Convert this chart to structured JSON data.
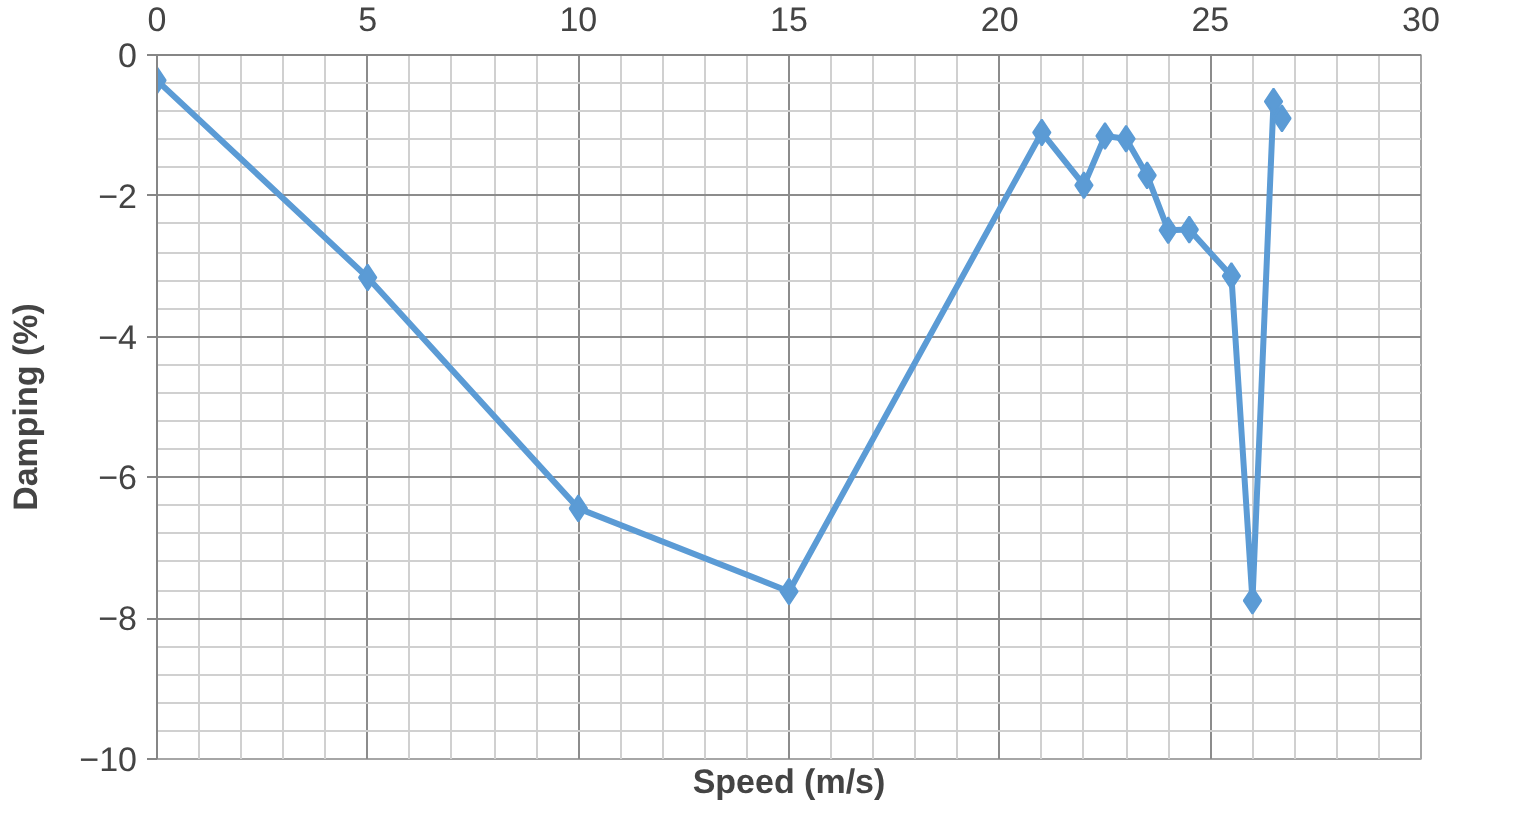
{
  "chart_data": {
    "type": "line",
    "xlabel": "Speed (m/s)",
    "ylabel": "Damping (%)",
    "x": [
      0,
      5,
      10,
      15,
      21,
      22,
      22.5,
      23,
      23.5,
      24,
      24.5,
      25.5,
      26,
      26.5,
      26.7
    ],
    "series": [
      {
        "color": "#5b9bd5",
        "values": [
          -0.36,
          -3.16,
          -6.44,
          -7.62,
          -1.1,
          -1.85,
          -1.15,
          -1.19,
          -1.71,
          -2.49,
          -2.48,
          -3.14,
          -7.75,
          -0.66,
          -0.9
        ]
      }
    ],
    "xlim": [
      0,
      30
    ],
    "ylim": [
      -10,
      0
    ],
    "xticks": [
      0,
      5,
      10,
      15,
      20,
      25,
      30
    ],
    "yticks": [
      -10,
      -8,
      -6,
      -4,
      -2,
      0
    ],
    "grid": true,
    "marker": "diamond",
    "line_style": "solid"
  }
}
